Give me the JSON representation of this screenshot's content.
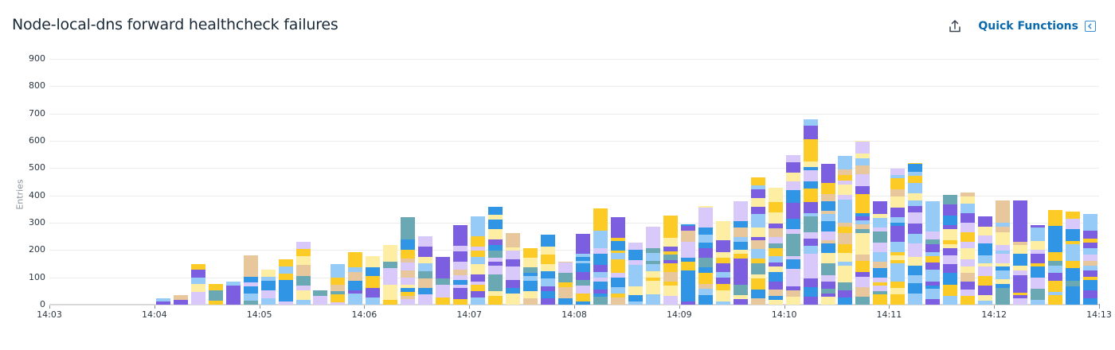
{
  "header": {
    "title": "Node-local-dns forward healthcheck failures",
    "share_icon": "share-upload-icon",
    "quick_functions_label": "Quick Functions",
    "quick_functions_icon": "panel-collapse-left-icon"
  },
  "palette": {
    "purple": "#7b5fe0",
    "lavender": "#d9c9fb",
    "yellow": "#fccb25",
    "pale_yellow": "#fdeea3",
    "blue": "#2f95e4",
    "light_blue": "#97cbf7",
    "teal": "#6aa9b3",
    "tan": "#e8c79c"
  },
  "chart_data": {
    "type": "bar",
    "stacked": true,
    "title": "Node-local-dns forward healthcheck failures",
    "xlabel": "",
    "ylabel": "Entries",
    "ylim": [
      0,
      900
    ],
    "yticks": [
      0,
      100,
      200,
      300,
      400,
      500,
      600,
      700,
      800,
      900
    ],
    "xticks": [
      "14:03",
      "14:04",
      "14:05",
      "14:06",
      "14:07",
      "14:08",
      "14:09",
      "14:10",
      "14:11",
      "14:12",
      "14:13"
    ],
    "bucket": "10s",
    "grid": true,
    "legend": "none",
    "x": [
      "14:04:00",
      "14:04:10",
      "14:04:20",
      "14:04:30",
      "14:04:40",
      "14:04:50",
      "14:05:00",
      "14:05:10",
      "14:05:20",
      "14:05:30",
      "14:05:40",
      "14:05:50",
      "14:06:00",
      "14:06:10",
      "14:06:20",
      "14:06:30",
      "14:06:40",
      "14:06:50",
      "14:07:00",
      "14:07:10",
      "14:07:20",
      "14:07:30",
      "14:07:40",
      "14:07:50",
      "14:08:00",
      "14:08:10",
      "14:08:20",
      "14:08:30",
      "14:08:40",
      "14:08:50",
      "14:09:00",
      "14:09:10",
      "14:09:20",
      "14:09:30",
      "14:09:40",
      "14:09:50",
      "14:10:00",
      "14:10:10",
      "14:10:20",
      "14:10:30",
      "14:10:40",
      "14:10:50",
      "14:11:00",
      "14:11:10",
      "14:11:20",
      "14:11:30",
      "14:11:40",
      "14:11:50",
      "14:12:00",
      "14:12:10",
      "14:12:20",
      "14:12:30",
      "14:12:40",
      "14:12:50"
    ],
    "values": [
      22,
      35,
      148,
      75,
      85,
      180,
      128,
      166,
      230,
      52,
      148,
      192,
      178,
      218,
      320,
      250,
      175,
      292,
      323,
      358,
      262,
      207,
      256,
      157,
      259,
      352,
      320,
      227,
      285,
      326,
      294,
      361,
      306,
      378,
      467,
      428,
      548,
      678,
      516,
      545,
      600,
      378,
      498,
      518,
      378,
      402,
      410,
      323,
      382,
      382,
      292,
      347,
      340,
      332
    ]
  },
  "axis": {
    "y_label": "Entries"
  }
}
